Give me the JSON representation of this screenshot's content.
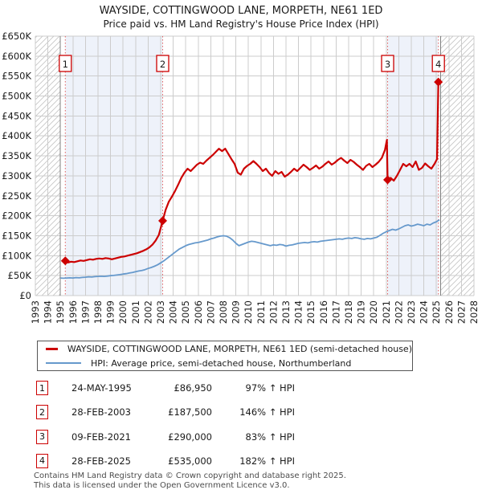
{
  "header": {
    "title": "WAYSIDE, COTTINGWOOD LANE, MORPETH, NE61 1ED",
    "subtitle": "Price paid vs. HM Land Registry's House Price Index (HPI)"
  },
  "colors": {
    "property_line": "#cc0000",
    "hpi_line": "#6699cc",
    "event_dashed_line": "#e06060",
    "shade_fill": "#eef2fa",
    "hatch_line": "#c4c4c4",
    "hatch_edge": "#808080",
    "grid_line": "#cccccc",
    "badge_border": "#cc0000"
  },
  "legend": {
    "items": [
      {
        "label": "WAYSIDE, COTTINGWOOD LANE, MORPETH, NE61 1ED (semi-detached house)",
        "color": "#cc0000",
        "thickness": 3
      },
      {
        "label": "HPI: Average price, semi-detached house, Northumberland",
        "color": "#6699cc",
        "thickness": 2.5
      }
    ]
  },
  "table": {
    "rows": [
      {
        "num": "1",
        "date": "24-MAY-1995",
        "price": "£86,950",
        "vs_hpi": "97% ↑ HPI"
      },
      {
        "num": "2",
        "date": "28-FEB-2003",
        "price": "£187,500",
        "vs_hpi": "146% ↑ HPI"
      },
      {
        "num": "3",
        "date": "09-FEB-2021",
        "price": "£290,000",
        "vs_hpi": "83% ↑ HPI"
      },
      {
        "num": "4",
        "date": "28-FEB-2025",
        "price": "£535,000",
        "vs_hpi": "182% ↑ HPI"
      }
    ]
  },
  "footer": {
    "line1": "Contains HM Land Registry data © Crown copyright and database right 2025.",
    "line2": "This data is licensed under the Open Government Licence v3.0."
  },
  "chart_data": {
    "type": "line",
    "title": "WAYSIDE, COTTINGWOOD LANE, MORPETH, NE61 1ED",
    "subtitle": "Price paid vs. HM Land Registry's House Price Index (HPI)",
    "unit": "GBP thousands",
    "x_axis": {
      "min": 1993,
      "max": 2028,
      "tick_years": [
        1993,
        1994,
        1995,
        1996,
        1997,
        1998,
        1999,
        2000,
        2001,
        2002,
        2003,
        2004,
        2005,
        2006,
        2007,
        2008,
        2009,
        2010,
        2011,
        2012,
        2013,
        2014,
        2015,
        2016,
        2017,
        2018,
        2019,
        2020,
        2021,
        2022,
        2023,
        2024,
        2025,
        2026,
        2027,
        2028
      ]
    },
    "y_axis": {
      "min": 0,
      "max": 650,
      "tick_step": 50,
      "tick_labels": [
        "£0",
        "£50K",
        "£100K",
        "£150K",
        "£200K",
        "£250K",
        "£300K",
        "£350K",
        "£400K",
        "£450K",
        "£500K",
        "£550K",
        "£600K",
        "£650K"
      ]
    },
    "grid": true,
    "legend_position": "below",
    "shaded_periods": [
      [
        1995.39,
        2003.16
      ],
      [
        2021.11,
        2025.16
      ]
    ],
    "hatched_periods": [
      [
        1993,
        1995.0
      ],
      [
        2025.35,
        2028
      ]
    ],
    "sales": [
      {
        "num": "1",
        "date": "24-MAY-1995",
        "year": 1995.39,
        "price_k": 86.95,
        "vs_hpi": "97% ↑ HPI"
      },
      {
        "num": "2",
        "date": "28-FEB-2003",
        "year": 2003.16,
        "price_k": 187.5,
        "vs_hpi": "146% ↑ HPI"
      },
      {
        "num": "3",
        "date": "09-FEB-2021",
        "year": 2021.11,
        "price_k": 290,
        "vs_hpi": "83% ↑ HPI"
      },
      {
        "num": "4",
        "date": "28-FEB-2025",
        "year": 2025.16,
        "price_k": 535,
        "vs_hpi": "182% ↑ HPI"
      }
    ],
    "series": [
      {
        "name": "WAYSIDE, COTTINGWOOD LANE, MORPETH, NE61 1ED (semi-detached house)",
        "color": "#cc0000",
        "width": 2.2,
        "points": [
          [
            1995.39,
            87
          ],
          [
            1995.6,
            83
          ],
          [
            1995.85,
            85
          ],
          [
            1996.1,
            84
          ],
          [
            1996.35,
            86
          ],
          [
            1996.6,
            88
          ],
          [
            1996.85,
            87
          ],
          [
            1997.1,
            89
          ],
          [
            1997.35,
            91
          ],
          [
            1997.6,
            90
          ],
          [
            1997.85,
            92
          ],
          [
            1998.1,
            93
          ],
          [
            1998.35,
            92
          ],
          [
            1998.6,
            94
          ],
          [
            1998.85,
            93
          ],
          [
            1999.1,
            91
          ],
          [
            1999.35,
            93
          ],
          [
            1999.6,
            95
          ],
          [
            1999.85,
            97
          ],
          [
            2000.1,
            98
          ],
          [
            2000.35,
            100
          ],
          [
            2000.6,
            102
          ],
          [
            2000.85,
            104
          ],
          [
            2001.1,
            106
          ],
          [
            2001.35,
            109
          ],
          [
            2001.6,
            112
          ],
          [
            2001.85,
            116
          ],
          [
            2002.1,
            121
          ],
          [
            2002.35,
            128
          ],
          [
            2002.6,
            138
          ],
          [
            2002.85,
            152
          ],
          [
            2003.16,
            187.5
          ],
          [
            2003.4,
            215
          ],
          [
            2003.65,
            235
          ],
          [
            2003.9,
            248
          ],
          [
            2004.15,
            262
          ],
          [
            2004.4,
            278
          ],
          [
            2004.65,
            295
          ],
          [
            2004.9,
            308
          ],
          [
            2005.15,
            318
          ],
          [
            2005.4,
            312
          ],
          [
            2005.65,
            320
          ],
          [
            2005.9,
            328
          ],
          [
            2006.15,
            333
          ],
          [
            2006.4,
            330
          ],
          [
            2006.65,
            338
          ],
          [
            2006.9,
            345
          ],
          [
            2007.15,
            352
          ],
          [
            2007.4,
            360
          ],
          [
            2007.65,
            368
          ],
          [
            2007.9,
            362
          ],
          [
            2008.15,
            368
          ],
          [
            2008.4,
            355
          ],
          [
            2008.65,
            342
          ],
          [
            2008.9,
            330
          ],
          [
            2009.15,
            308
          ],
          [
            2009.4,
            303
          ],
          [
            2009.65,
            318
          ],
          [
            2009.9,
            325
          ],
          [
            2010.15,
            330
          ],
          [
            2010.4,
            337
          ],
          [
            2010.65,
            330
          ],
          [
            2010.9,
            322
          ],
          [
            2011.15,
            312
          ],
          [
            2011.4,
            318
          ],
          [
            2011.65,
            307
          ],
          [
            2011.9,
            300
          ],
          [
            2012.15,
            312
          ],
          [
            2012.4,
            305
          ],
          [
            2012.65,
            310
          ],
          [
            2012.9,
            298
          ],
          [
            2013.15,
            303
          ],
          [
            2013.4,
            310
          ],
          [
            2013.65,
            318
          ],
          [
            2013.9,
            312
          ],
          [
            2014.15,
            320
          ],
          [
            2014.4,
            328
          ],
          [
            2014.65,
            322
          ],
          [
            2014.9,
            315
          ],
          [
            2015.15,
            320
          ],
          [
            2015.4,
            326
          ],
          [
            2015.65,
            318
          ],
          [
            2015.9,
            323
          ],
          [
            2016.15,
            330
          ],
          [
            2016.4,
            336
          ],
          [
            2016.65,
            328
          ],
          [
            2016.9,
            333
          ],
          [
            2017.15,
            340
          ],
          [
            2017.4,
            345
          ],
          [
            2017.65,
            338
          ],
          [
            2017.9,
            332
          ],
          [
            2018.15,
            340
          ],
          [
            2018.4,
            335
          ],
          [
            2018.65,
            328
          ],
          [
            2018.9,
            322
          ],
          [
            2019.15,
            315
          ],
          [
            2019.4,
            325
          ],
          [
            2019.65,
            330
          ],
          [
            2019.9,
            322
          ],
          [
            2020.15,
            328
          ],
          [
            2020.4,
            335
          ],
          [
            2020.65,
            345
          ],
          [
            2020.9,
            365
          ],
          [
            2021.05,
            390
          ],
          [
            2021.11,
            290
          ],
          [
            2021.35,
            295
          ],
          [
            2021.6,
            288
          ],
          [
            2021.85,
            300
          ],
          [
            2022.1,
            315
          ],
          [
            2022.35,
            330
          ],
          [
            2022.6,
            324
          ],
          [
            2022.85,
            330
          ],
          [
            2023.1,
            322
          ],
          [
            2023.35,
            336
          ],
          [
            2023.6,
            315
          ],
          [
            2023.85,
            320
          ],
          [
            2024.1,
            331
          ],
          [
            2024.35,
            324
          ],
          [
            2024.6,
            318
          ],
          [
            2024.85,
            330
          ],
          [
            2025.05,
            342
          ],
          [
            2025.16,
            535
          ]
        ]
      },
      {
        "name": "HPI: Average price, semi-detached house, Northumberland",
        "color": "#6699cc",
        "width": 1.8,
        "points": [
          [
            1995.0,
            44
          ],
          [
            1995.25,
            43.5
          ],
          [
            1995.5,
            44
          ],
          [
            1995.75,
            44.5
          ],
          [
            1996.0,
            44
          ],
          [
            1996.25,
            45
          ],
          [
            1996.5,
            44.5
          ],
          [
            1996.75,
            45.5
          ],
          [
            1997.0,
            46
          ],
          [
            1997.25,
            47
          ],
          [
            1997.5,
            46.5
          ],
          [
            1997.75,
            47.5
          ],
          [
            1998.0,
            48
          ],
          [
            1998.25,
            48.5
          ],
          [
            1998.5,
            48
          ],
          [
            1998.75,
            49
          ],
          [
            1999.0,
            50
          ],
          [
            1999.25,
            50.5
          ],
          [
            1999.5,
            51.5
          ],
          [
            1999.75,
            52.5
          ],
          [
            2000.0,
            54
          ],
          [
            2000.25,
            55
          ],
          [
            2000.5,
            56.5
          ],
          [
            2000.75,
            58
          ],
          [
            2001.0,
            60
          ],
          [
            2001.25,
            61.5
          ],
          [
            2001.5,
            63
          ],
          [
            2001.75,
            65
          ],
          [
            2002.0,
            68
          ],
          [
            2002.25,
            70.5
          ],
          [
            2002.5,
            73.5
          ],
          [
            2002.75,
            77
          ],
          [
            2003.0,
            82
          ],
          [
            2003.25,
            87
          ],
          [
            2003.5,
            93
          ],
          [
            2003.75,
            99
          ],
          [
            2004.0,
            105
          ],
          [
            2004.25,
            111
          ],
          [
            2004.5,
            117
          ],
          [
            2004.75,
            121
          ],
          [
            2005.0,
            125
          ],
          [
            2005.25,
            128
          ],
          [
            2005.5,
            130
          ],
          [
            2005.75,
            132
          ],
          [
            2006.0,
            133
          ],
          [
            2006.25,
            135
          ],
          [
            2006.5,
            137
          ],
          [
            2006.75,
            139
          ],
          [
            2007.0,
            142
          ],
          [
            2007.25,
            144
          ],
          [
            2007.5,
            147
          ],
          [
            2007.75,
            149
          ],
          [
            2008.0,
            150
          ],
          [
            2008.25,
            149
          ],
          [
            2008.5,
            145
          ],
          [
            2008.75,
            139
          ],
          [
            2009.0,
            131
          ],
          [
            2009.25,
            125
          ],
          [
            2009.5,
            128
          ],
          [
            2009.75,
            131
          ],
          [
            2010.0,
            134
          ],
          [
            2010.25,
            136
          ],
          [
            2010.5,
            135
          ],
          [
            2010.75,
            133
          ],
          [
            2011.0,
            131
          ],
          [
            2011.25,
            129
          ],
          [
            2011.5,
            127
          ],
          [
            2011.75,
            125
          ],
          [
            2012.0,
            127
          ],
          [
            2012.25,
            126
          ],
          [
            2012.5,
            128
          ],
          [
            2012.75,
            127
          ],
          [
            2013.0,
            124
          ],
          [
            2013.25,
            126
          ],
          [
            2013.5,
            127
          ],
          [
            2013.75,
            129
          ],
          [
            2014.0,
            131
          ],
          [
            2014.25,
            132
          ],
          [
            2014.5,
            133
          ],
          [
            2014.75,
            132
          ],
          [
            2015.0,
            134
          ],
          [
            2015.25,
            135
          ],
          [
            2015.5,
            134
          ],
          [
            2015.75,
            136
          ],
          [
            2016.0,
            137
          ],
          [
            2016.25,
            138
          ],
          [
            2016.5,
            139
          ],
          [
            2016.75,
            140
          ],
          [
            2017.0,
            141
          ],
          [
            2017.25,
            142
          ],
          [
            2017.5,
            141
          ],
          [
            2017.75,
            143
          ],
          [
            2018.0,
            144
          ],
          [
            2018.25,
            143
          ],
          [
            2018.5,
            145
          ],
          [
            2018.75,
            144
          ],
          [
            2019.0,
            142
          ],
          [
            2019.25,
            141
          ],
          [
            2019.5,
            143
          ],
          [
            2019.75,
            142
          ],
          [
            2020.0,
            144
          ],
          [
            2020.25,
            146
          ],
          [
            2020.5,
            151
          ],
          [
            2020.75,
            156
          ],
          [
            2021.0,
            160
          ],
          [
            2021.25,
            163
          ],
          [
            2021.5,
            166
          ],
          [
            2021.75,
            164
          ],
          [
            2022.0,
            167
          ],
          [
            2022.25,
            171
          ],
          [
            2022.5,
            175
          ],
          [
            2022.75,
            177
          ],
          [
            2023.0,
            174
          ],
          [
            2023.25,
            176
          ],
          [
            2023.5,
            179
          ],
          [
            2023.75,
            177
          ],
          [
            2024.0,
            175
          ],
          [
            2024.25,
            179
          ],
          [
            2024.5,
            177
          ],
          [
            2024.75,
            182
          ],
          [
            2025.0,
            185
          ],
          [
            2025.25,
            190
          ]
        ]
      }
    ]
  }
}
